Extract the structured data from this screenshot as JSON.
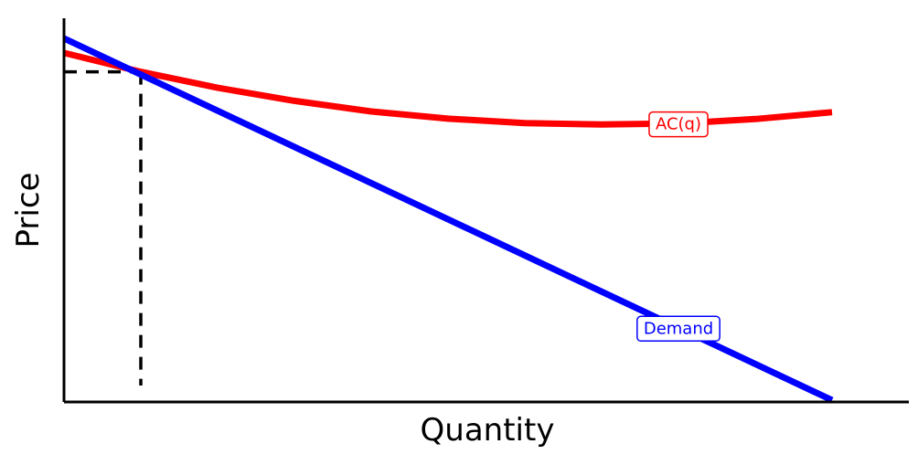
{
  "chart_data": {
    "type": "line",
    "title": "",
    "xlabel": "Quantity",
    "ylabel": "Price",
    "xlim": [
      0,
      100
    ],
    "ylim": [
      0,
      100
    ],
    "grid": false,
    "series": [
      {
        "name": "AC(q)",
        "color": "#ff0000",
        "x": [
          0,
          10,
          20,
          30,
          40,
          50,
          60,
          70,
          80,
          90,
          100
        ],
        "y": [
          95.5,
          90.3,
          85.9,
          82.3,
          79.4,
          77.4,
          76.2,
          75.8,
          76.1,
          77.3,
          79.2
        ]
      },
      {
        "name": "Demand",
        "color": "#0000ff",
        "x": [
          0,
          100
        ],
        "y": [
          99.5,
          0
        ]
      }
    ],
    "annotations": [
      {
        "type": "dashed-guide",
        "x": 10,
        "y": 90.3,
        "color": "#000000"
      }
    ]
  }
}
